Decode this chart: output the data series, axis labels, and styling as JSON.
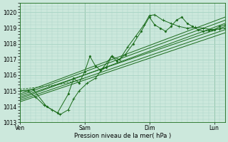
{
  "xlabel": "Pression niveau de la mer( hPa )",
  "background_color": "#cce8dc",
  "grid_color": "#a8d4c4",
  "line_color": "#1a6b1a",
  "ylim": [
    1013.0,
    1020.6
  ],
  "yticks": [
    1013,
    1014,
    1015,
    1016,
    1017,
    1018,
    1019,
    1020
  ],
  "day_labels": [
    "Ven",
    "Sam",
    "Dim",
    "Lun"
  ],
  "day_positions": [
    0,
    48,
    96,
    144
  ],
  "xlim": [
    0,
    152
  ],
  "ensemble_lines": [
    {
      "x": [
        0,
        152
      ],
      "y": [
        1014.5,
        1019.3
      ]
    },
    {
      "x": [
        0,
        152
      ],
      "y": [
        1014.7,
        1019.5
      ]
    },
    {
      "x": [
        0,
        152
      ],
      "y": [
        1014.6,
        1019.1
      ]
    },
    {
      "x": [
        0,
        152
      ],
      "y": [
        1014.4,
        1018.9
      ]
    },
    {
      "x": [
        0,
        152
      ],
      "y": [
        1014.8,
        1019.7
      ]
    },
    {
      "x": [
        0,
        152
      ],
      "y": [
        1014.3,
        1018.7
      ]
    }
  ],
  "jagged_line": {
    "t": [
      0,
      10,
      20,
      28,
      36,
      40,
      44,
      48,
      52,
      56,
      60,
      64,
      68,
      72,
      78,
      84,
      90,
      96,
      100,
      104,
      108,
      112,
      116,
      120,
      124,
      128,
      132,
      136,
      140,
      144,
      148,
      152
    ],
    "y": [
      1015.0,
      1015.1,
      1014.0,
      1013.6,
      1014.8,
      1015.8,
      1015.5,
      1016.2,
      1017.2,
      1016.6,
      1016.3,
      1016.5,
      1017.2,
      1016.9,
      1017.3,
      1018.0,
      1018.8,
      1019.7,
      1019.2,
      1019.0,
      1018.8,
      1019.1,
      1019.5,
      1019.7,
      1019.3,
      1019.1,
      1018.9,
      1018.8,
      1018.85,
      1018.9,
      1019.1,
      1019.2
    ]
  },
  "wiggly_line": {
    "t": [
      0,
      6,
      12,
      18,
      24,
      30,
      36,
      40,
      44,
      50,
      56,
      62,
      68,
      74,
      80,
      86,
      92,
      96,
      100,
      106,
      112,
      118,
      124,
      130,
      136,
      142,
      148,
      152
    ],
    "y": [
      1015.0,
      1015.0,
      1014.6,
      1014.1,
      1013.8,
      1013.5,
      1013.8,
      1014.5,
      1015.0,
      1015.5,
      1015.8,
      1016.5,
      1017.2,
      1017.0,
      1017.8,
      1018.5,
      1019.2,
      1019.8,
      1019.85,
      1019.5,
      1019.3,
      1019.1,
      1019.0,
      1019.05,
      1019.0,
      1018.9,
      1018.95,
      1019.0
    ]
  },
  "dotted_line": {
    "t": [
      0,
      20,
      35,
      48
    ],
    "y": [
      1015.1,
      1015.3,
      1015.5,
      1015.8
    ]
  }
}
